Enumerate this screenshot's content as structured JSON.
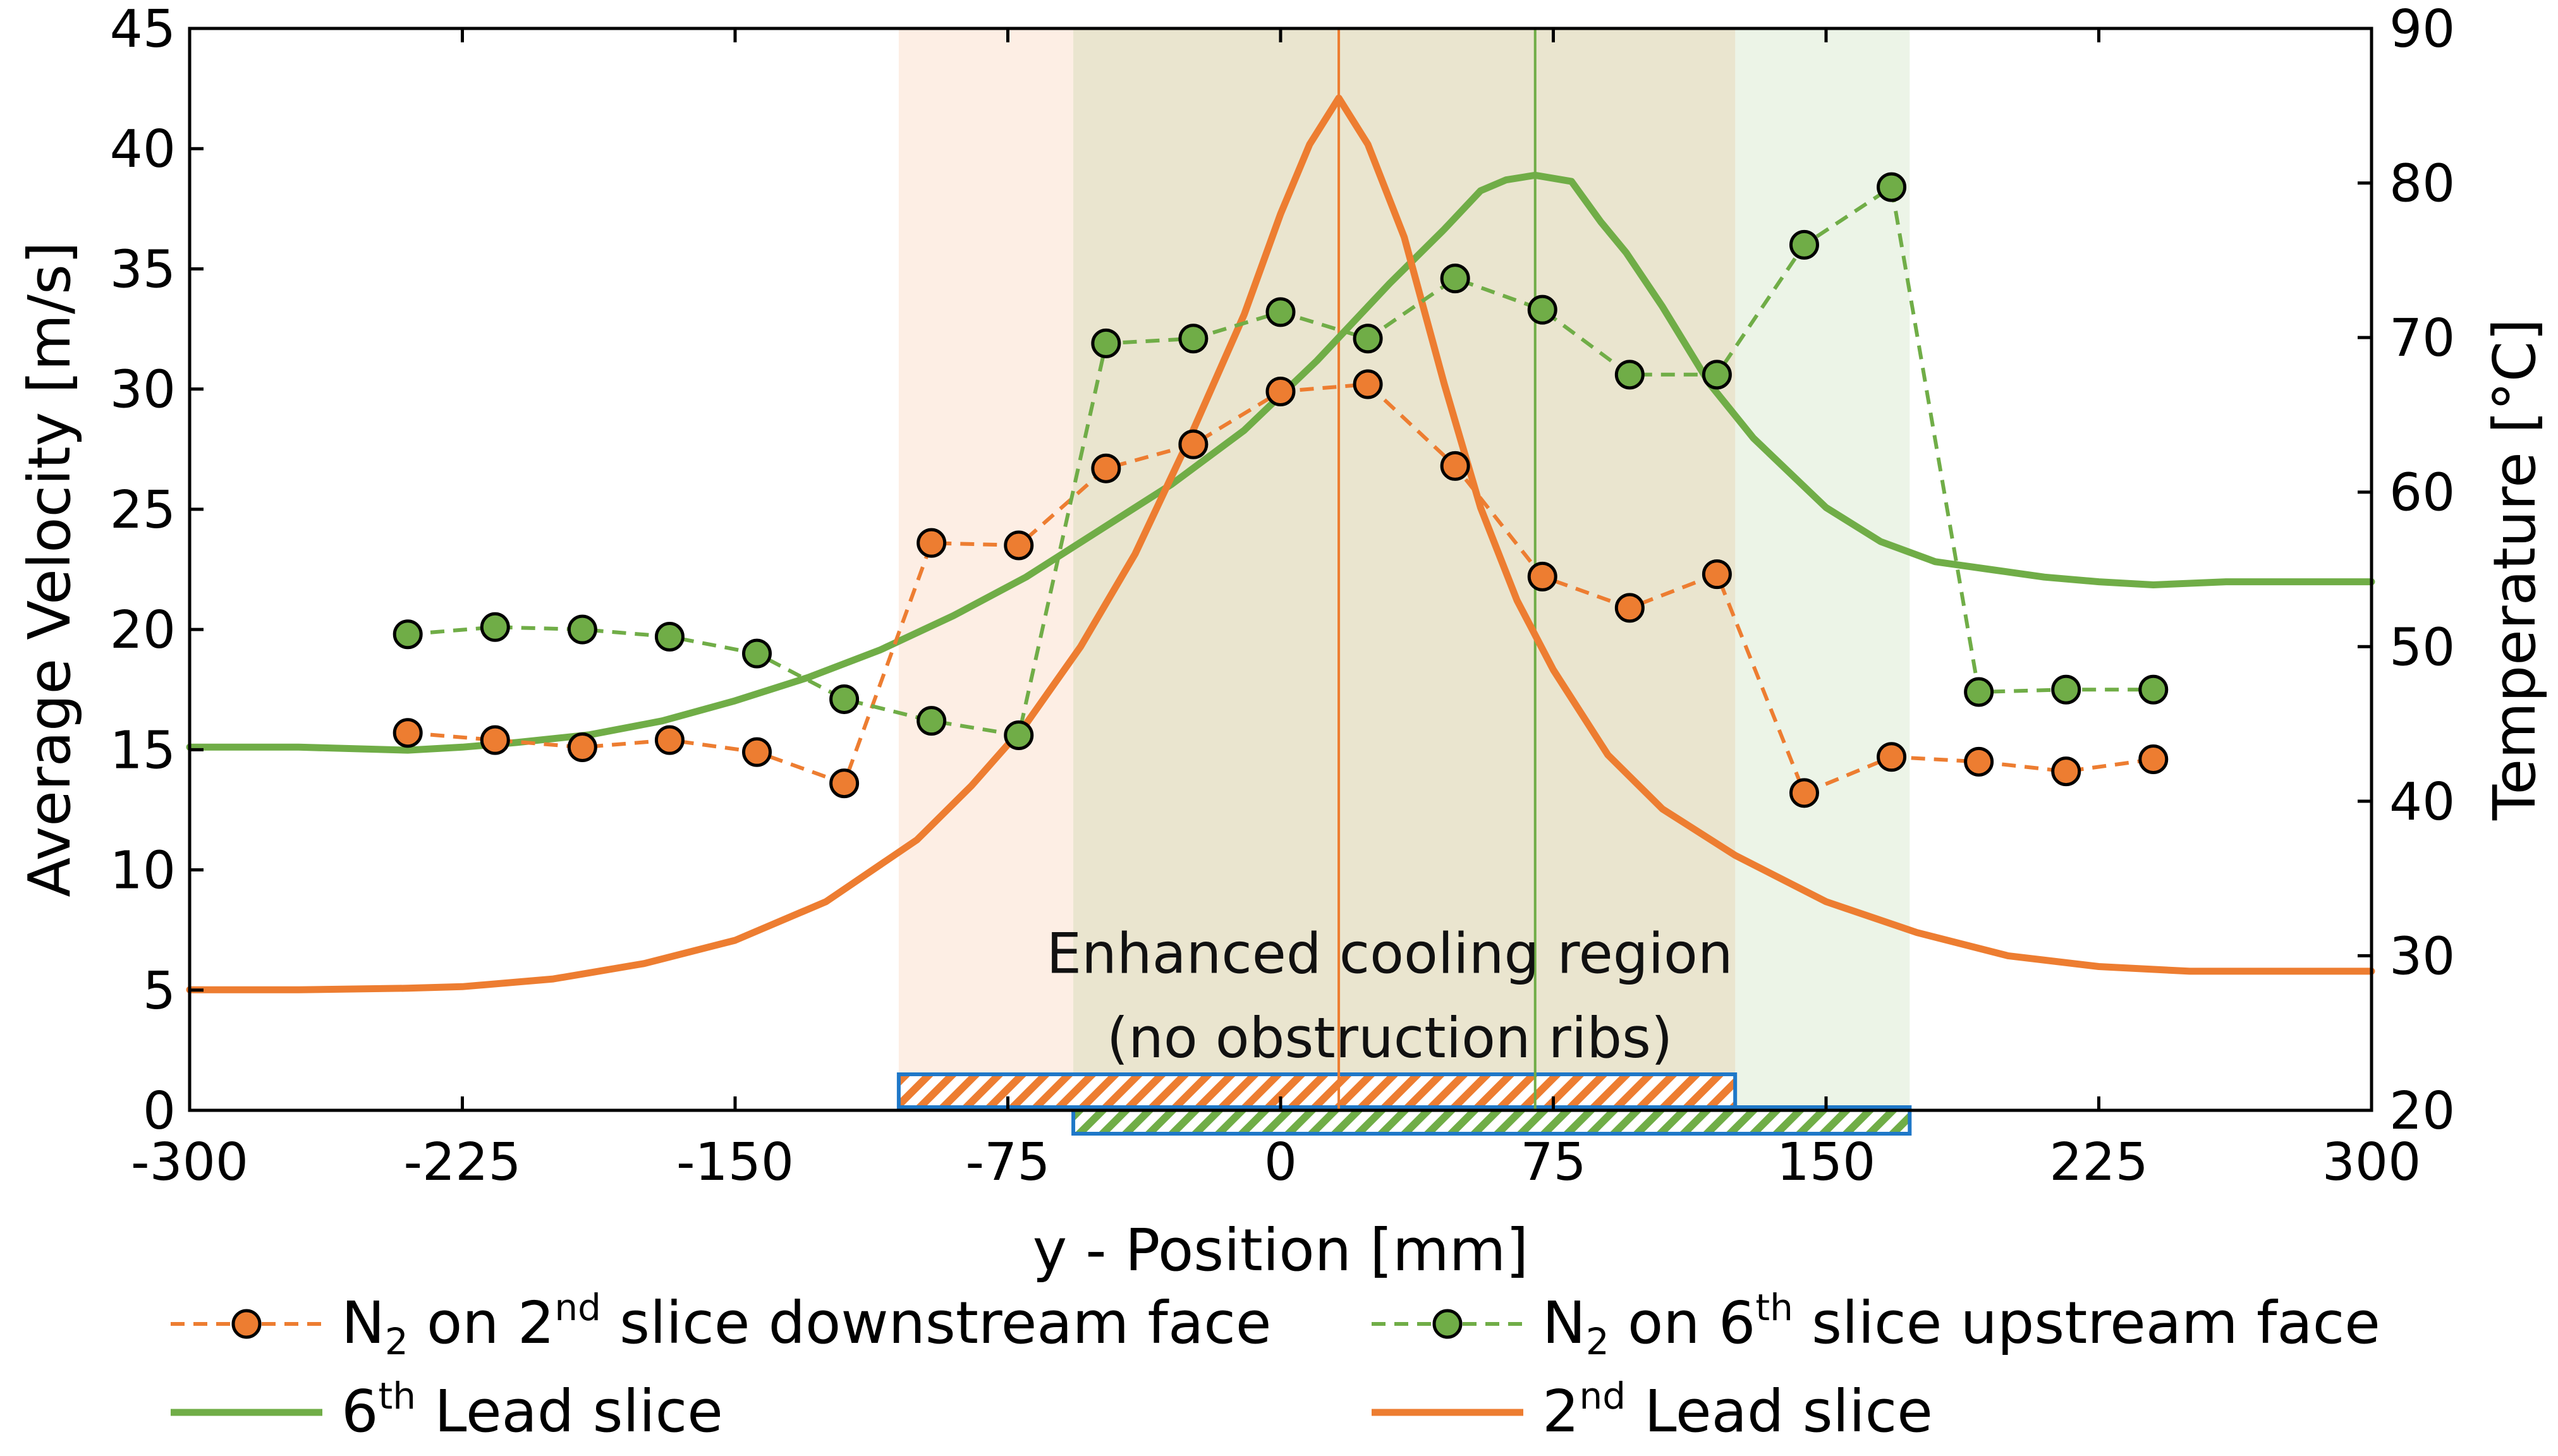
{
  "chart_data": {
    "type": "line",
    "xlabel": "y - Position [mm]",
    "ylabel_left": "Average Velocity [m/s]",
    "ylabel_right": "Temperature [°C]",
    "xlim": [
      -300,
      300
    ],
    "ylim_left": [
      0,
      45
    ],
    "ylim_right": [
      20,
      90
    ],
    "x_ticks": [
      -300,
      -225,
      -150,
      -75,
      0,
      75,
      150,
      225,
      300
    ],
    "y_ticks_left": [
      0,
      5,
      10,
      15,
      20,
      25,
      30,
      35,
      40,
      45
    ],
    "y_ticks_right": [
      20,
      30,
      40,
      50,
      60,
      70,
      80,
      90
    ],
    "annotation": {
      "line1": "Enhanced cooling region",
      "line2": "(no obstruction ribs)",
      "x": 30,
      "y_velocity_line1": 6.5,
      "y_velocity_line2": 3.0
    },
    "regions": [
      {
        "name": "2nd slice cooling region",
        "x_start": -105,
        "x_end": 125,
        "color": "#ED7D31"
      },
      {
        "name": "6th slice cooling region",
        "x_start": -57,
        "x_end": 173,
        "color": "#70AD47"
      }
    ],
    "peak_markers": [
      {
        "name": "2nd slice peak",
        "x": 16,
        "color": "#ED7D31"
      },
      {
        "name": "6th slice peak",
        "x": 70,
        "color": "#70AD47"
      }
    ],
    "series": [
      {
        "name": "N2 on 2nd slice downstream face",
        "axis": "left",
        "style": "dashed-markers",
        "color": "#ED7D31",
        "x": [
          -240,
          -216,
          -192,
          -168,
          -144,
          -120,
          -96,
          -72,
          -48,
          -24,
          0,
          24,
          48,
          72,
          96,
          120,
          144,
          168,
          192,
          216,
          240
        ],
        "y": [
          15.7,
          15.4,
          15.1,
          15.4,
          14.9,
          13.6,
          23.6,
          23.5,
          26.7,
          27.7,
          29.9,
          30.2,
          26.8,
          22.2,
          20.9,
          22.3,
          13.2,
          14.7,
          14.5,
          14.1,
          14.6
        ]
      },
      {
        "name": "N2 on 6th slice upstream face",
        "axis": "left",
        "style": "dashed-markers",
        "color": "#70AD47",
        "x": [
          -240,
          -216,
          -192,
          -168,
          -144,
          -120,
          -96,
          -72,
          -48,
          -24,
          0,
          24,
          48,
          72,
          96,
          120,
          144,
          168,
          192,
          216,
          240
        ],
        "y": [
          19.8,
          20.1,
          20.0,
          19.7,
          19.0,
          17.1,
          16.2,
          15.6,
          31.9,
          32.1,
          33.2,
          32.1,
          34.6,
          33.3,
          30.6,
          30.6,
          36.0,
          38.4,
          17.4,
          17.5,
          17.5
        ]
      },
      {
        "name": "6th Lead slice",
        "axis": "right",
        "style": "solid",
        "color": "#70AD47",
        "x": [
          -300,
          -270,
          -240,
          -225,
          -210,
          -190,
          -170,
          -150,
          -130,
          -110,
          -90,
          -70,
          -50,
          -30,
          -10,
          10,
          30,
          45,
          55,
          62,
          70,
          80,
          88,
          95,
          105,
          118,
          130,
          150,
          165,
          180,
          195,
          210,
          225,
          240,
          260,
          280,
          300
        ],
        "y": [
          43.5,
          43.5,
          43.3,
          43.5,
          43.8,
          44.3,
          45.2,
          46.5,
          48.0,
          49.8,
          52.0,
          54.5,
          57.5,
          60.5,
          64.0,
          68.5,
          73.5,
          77.0,
          79.5,
          80.2,
          80.5,
          80.1,
          77.5,
          75.5,
          72.0,
          67.0,
          63.5,
          59.0,
          56.8,
          55.5,
          55.0,
          54.5,
          54.2,
          54.0,
          54.2,
          54.2,
          54.2
        ]
      },
      {
        "name": "2nd Lead slice",
        "axis": "right",
        "style": "solid",
        "color": "#ED7D31",
        "x": [
          -300,
          -270,
          -240,
          -225,
          -200,
          -175,
          -150,
          -125,
          -100,
          -85,
          -70,
          -55,
          -40,
          -25,
          -10,
          0,
          8,
          16,
          24,
          34,
          45,
          55,
          65,
          75,
          90,
          105,
          125,
          150,
          175,
          200,
          225,
          250,
          275,
          300
        ],
        "y": [
          27.8,
          27.8,
          27.9,
          28.0,
          28.5,
          29.5,
          31.0,
          33.5,
          37.5,
          41.0,
          45.0,
          50.0,
          56.0,
          63.5,
          71.5,
          78.0,
          82.5,
          85.5,
          82.5,
          76.5,
          67.0,
          59.0,
          53.0,
          48.5,
          43.0,
          39.5,
          36.5,
          33.5,
          31.5,
          30.0,
          29.3,
          29.0,
          29.0,
          29.0
        ]
      }
    ],
    "legend": [
      {
        "prefix": "N",
        "sub": "2",
        "mid": " on 2",
        "sup": "nd",
        "suffix": " slice downstream face",
        "style": "dashed-markers",
        "color": "#ED7D31"
      },
      {
        "prefix": "N",
        "sub": "2",
        "mid": " on 6",
        "sup": "th",
        "suffix": " slice upstream face",
        "style": "dashed-markers",
        "color": "#70AD47"
      },
      {
        "prefix": "6",
        "sub": "",
        "mid": "",
        "sup": "th",
        "suffix": " Lead slice",
        "style": "solid",
        "color": "#70AD47"
      },
      {
        "prefix": "2",
        "sub": "",
        "mid": "",
        "sup": "nd",
        "suffix": " Lead slice",
        "style": "solid",
        "color": "#ED7D31"
      }
    ]
  }
}
